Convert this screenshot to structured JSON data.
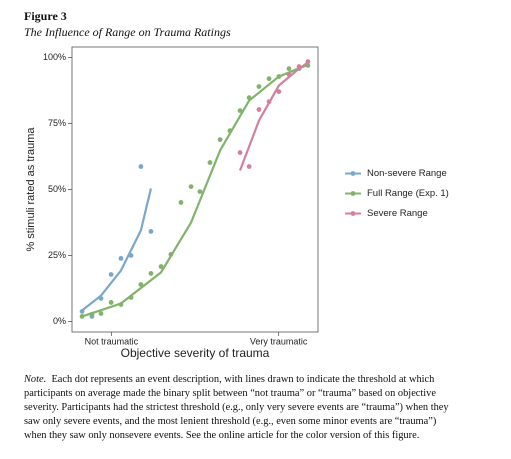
{
  "figure": {
    "label": "Figure 3",
    "title": "The Influence of Range on Trauma Ratings"
  },
  "chart_data": {
    "type": "scatter",
    "x_label": "Objective severity of trauma",
    "y_label": "% stimuli rated as trauma",
    "xlim": [
      0,
      100
    ],
    "xticks": [
      {
        "value": 16,
        "label": "Not traumatic"
      },
      {
        "value": 84,
        "label": "Very traumatic"
      }
    ],
    "ylim": [
      -4,
      104
    ],
    "yticks": [
      {
        "value": 0,
        "label": "0%"
      },
      {
        "value": 25,
        "label": "25%"
      },
      {
        "value": 50,
        "label": "50%"
      },
      {
        "value": 75,
        "label": "75%"
      },
      {
        "value": 100,
        "label": "100%"
      }
    ],
    "legend": "right",
    "series": [
      {
        "name": "Non-severe Range",
        "color": "#7ba7cb",
        "x": [
          4.1,
          8.1,
          11.8,
          15.9,
          19.9,
          24.0,
          28.0,
          32.1
        ],
        "values": [
          3.8,
          1.9,
          8.7,
          17.8,
          23.9,
          25.0,
          58.7,
          34.1
        ],
        "fit_x": [
          4.1,
          11.8,
          19.9,
          28.0,
          32.1
        ],
        "fit_values": [
          4.2,
          9.8,
          19.3,
          34.5,
          50.4
        ]
      },
      {
        "name": "Full Range (Exp. 1)",
        "color": "#82b36d",
        "x": [
          4.1,
          8.1,
          11.8,
          15.9,
          19.9,
          24.0,
          28.0,
          32.1,
          36.2,
          40.2,
          44.3,
          48.4,
          52.0,
          56.1,
          60.2,
          64.2,
          68.3,
          72.0,
          76.0,
          80.1,
          84.1,
          88.2,
          92.3,
          95.9
        ],
        "values": [
          1.9,
          2.7,
          3.0,
          7.2,
          6.4,
          9.1,
          14.0,
          18.2,
          20.8,
          25.4,
          45.1,
          51.1,
          49.2,
          60.2,
          68.9,
          72.3,
          79.9,
          84.8,
          89.0,
          92.0,
          92.8,
          95.8,
          95.8,
          97.0
        ],
        "fit_x": [
          4.1,
          19.9,
          36.2,
          48.4,
          60.2,
          72.0,
          84.1,
          95.9
        ],
        "fit_values": [
          1.9,
          6.8,
          18.6,
          37.5,
          64.8,
          83.7,
          92.8,
          97.3
        ]
      },
      {
        "name": "Severe Range",
        "color": "#d3819a",
        "x": [
          68.3,
          72.0,
          76.0,
          80.1,
          84.1,
          88.2,
          92.3,
          95.9
        ],
        "values": [
          64.0,
          58.7,
          80.3,
          83.3,
          87.1,
          93.6,
          96.6,
          98.5
        ],
        "fit_x": [
          68.3,
          76.0,
          84.1,
          92.3,
          95.9
        ],
        "fit_values": [
          57.2,
          76.1,
          89.4,
          95.8,
          98.1
        ]
      }
    ]
  },
  "note": {
    "label": "Note.",
    "text": "Each dot represents an event description, with lines drawn to indicate the threshold at which participants on average made the binary split between “not trauma” or “trauma” based on objective severity. Participants had the strictest threshold (e.g., only very severe events are “trauma”) when they saw only severe events, and the most lenient threshold (e.g., even some minor events are “trauma”) when they saw only nonsevere events. See the online article for the color version of this figure."
  }
}
